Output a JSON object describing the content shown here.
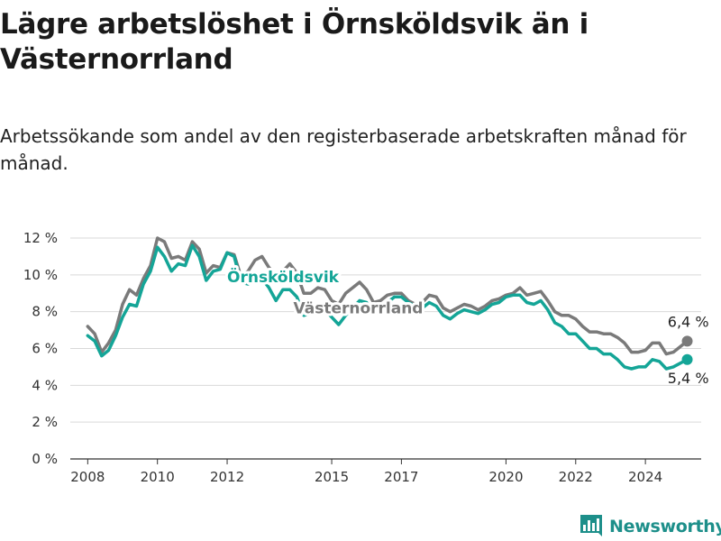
{
  "header": {
    "title": "Lägre arbetslöshet i Örnsköldsvik än i Västernorrland",
    "subtitle": "Arbetssökande som andel av den registerbaserade arbetskraften månad för månad."
  },
  "brand": {
    "name": "Newsworthy",
    "icon": "bar-chart-logo-icon",
    "color": "#1d8f8a"
  },
  "chart_data": {
    "type": "line",
    "title": "Lägre arbetslöshet i Örnsköldsvik än i Västernorrland",
    "subtitle": "Arbetssökande som andel av den registerbaserade arbetskraften månad för månad.",
    "xlabel": "",
    "ylabel": "",
    "xlim": [
      2007.5,
      2025.6
    ],
    "ylim": [
      0,
      12
    ],
    "x_ticks": [
      2008,
      2010,
      2012,
      2015,
      2017,
      2020,
      2022,
      2024
    ],
    "y_ticks": [
      {
        "value": 0,
        "label": "0 %"
      },
      {
        "value": 2,
        "label": "2 %"
      },
      {
        "value": 4,
        "label": "4 %"
      },
      {
        "value": 6,
        "label": "6 %"
      },
      {
        "value": 8,
        "label": "8 %"
      },
      {
        "value": 10,
        "label": "10 %"
      },
      {
        "value": 12,
        "label": "12 %"
      }
    ],
    "grid": true,
    "series": [
      {
        "name": "Västernorrland",
        "color": "#7a7a7a",
        "label_at": [
          2013.9,
          7.9
        ],
        "end_label": "6,4 %",
        "points": [
          [
            2008.0,
            7.2
          ],
          [
            2008.2,
            6.8
          ],
          [
            2008.4,
            5.8
          ],
          [
            2008.6,
            6.3
          ],
          [
            2008.8,
            7.0
          ],
          [
            2009.0,
            8.4
          ],
          [
            2009.2,
            9.2
          ],
          [
            2009.4,
            8.9
          ],
          [
            2009.6,
            9.8
          ],
          [
            2009.8,
            10.5
          ],
          [
            2010.0,
            12.0
          ],
          [
            2010.2,
            11.8
          ],
          [
            2010.4,
            10.9
          ],
          [
            2010.6,
            11.0
          ],
          [
            2010.8,
            10.8
          ],
          [
            2011.0,
            11.8
          ],
          [
            2011.2,
            11.4
          ],
          [
            2011.4,
            10.1
          ],
          [
            2011.6,
            10.5
          ],
          [
            2011.8,
            10.4
          ],
          [
            2012.0,
            11.2
          ],
          [
            2012.2,
            11.1
          ],
          [
            2012.4,
            9.9
          ],
          [
            2012.6,
            10.2
          ],
          [
            2012.8,
            10.8
          ],
          [
            2013.0,
            11.0
          ],
          [
            2013.2,
            10.4
          ],
          [
            2013.4,
            10.0
          ],
          [
            2013.6,
            10.2
          ],
          [
            2013.8,
            10.6
          ],
          [
            2014.0,
            10.1
          ],
          [
            2014.2,
            9.0
          ],
          [
            2014.4,
            9.0
          ],
          [
            2014.6,
            9.3
          ],
          [
            2014.8,
            9.2
          ],
          [
            2015.0,
            8.6
          ],
          [
            2015.2,
            8.4
          ],
          [
            2015.4,
            9.0
          ],
          [
            2015.6,
            9.3
          ],
          [
            2015.8,
            9.6
          ],
          [
            2016.0,
            9.2
          ],
          [
            2016.2,
            8.5
          ],
          [
            2016.4,
            8.6
          ],
          [
            2016.6,
            8.9
          ],
          [
            2016.8,
            9.0
          ],
          [
            2017.0,
            9.0
          ],
          [
            2017.2,
            8.6
          ],
          [
            2017.4,
            8.4
          ],
          [
            2017.6,
            8.5
          ],
          [
            2017.8,
            8.9
          ],
          [
            2018.0,
            8.8
          ],
          [
            2018.2,
            8.2
          ],
          [
            2018.4,
            8.0
          ],
          [
            2018.6,
            8.2
          ],
          [
            2018.8,
            8.4
          ],
          [
            2019.0,
            8.3
          ],
          [
            2019.2,
            8.1
          ],
          [
            2019.4,
            8.3
          ],
          [
            2019.6,
            8.6
          ],
          [
            2019.8,
            8.7
          ],
          [
            2020.0,
            8.9
          ],
          [
            2020.2,
            9.0
          ],
          [
            2020.4,
            9.3
          ],
          [
            2020.6,
            8.9
          ],
          [
            2020.8,
            9.0
          ],
          [
            2021.0,
            9.1
          ],
          [
            2021.2,
            8.6
          ],
          [
            2021.4,
            8.0
          ],
          [
            2021.6,
            7.8
          ],
          [
            2021.8,
            7.8
          ],
          [
            2022.0,
            7.6
          ],
          [
            2022.2,
            7.2
          ],
          [
            2022.4,
            6.9
          ],
          [
            2022.6,
            6.9
          ],
          [
            2022.8,
            6.8
          ],
          [
            2023.0,
            6.8
          ],
          [
            2023.2,
            6.6
          ],
          [
            2023.4,
            6.3
          ],
          [
            2023.6,
            5.8
          ],
          [
            2023.8,
            5.8
          ],
          [
            2024.0,
            5.9
          ],
          [
            2024.2,
            6.3
          ],
          [
            2024.4,
            6.3
          ],
          [
            2024.6,
            5.7
          ],
          [
            2024.8,
            5.8
          ],
          [
            2025.0,
            6.1
          ],
          [
            2025.2,
            6.4
          ]
        ]
      },
      {
        "name": "Örnsköldsvik",
        "color": "#14a597",
        "label_at": [
          2012.0,
          9.6
        ],
        "end_label": "5,4 %",
        "points": [
          [
            2008.0,
            6.7
          ],
          [
            2008.2,
            6.4
          ],
          [
            2008.4,
            5.6
          ],
          [
            2008.6,
            5.9
          ],
          [
            2008.8,
            6.7
          ],
          [
            2009.0,
            7.7
          ],
          [
            2009.2,
            8.4
          ],
          [
            2009.4,
            8.3
          ],
          [
            2009.6,
            9.5
          ],
          [
            2009.8,
            10.2
          ],
          [
            2010.0,
            11.5
          ],
          [
            2010.2,
            11.0
          ],
          [
            2010.4,
            10.2
          ],
          [
            2010.6,
            10.6
          ],
          [
            2010.8,
            10.5
          ],
          [
            2011.0,
            11.6
          ],
          [
            2011.2,
            11.0
          ],
          [
            2011.4,
            9.7
          ],
          [
            2011.6,
            10.2
          ],
          [
            2011.8,
            10.3
          ],
          [
            2012.0,
            11.2
          ],
          [
            2012.2,
            11.0
          ],
          [
            2012.4,
            9.6
          ],
          [
            2012.6,
            9.5
          ],
          [
            2012.8,
            9.7
          ],
          [
            2013.0,
            9.8
          ],
          [
            2013.2,
            9.3
          ],
          [
            2013.4,
            8.6
          ],
          [
            2013.6,
            9.2
          ],
          [
            2013.8,
            9.2
          ],
          [
            2014.0,
            8.8
          ],
          [
            2014.2,
            7.8
          ],
          [
            2014.4,
            7.9
          ],
          [
            2014.6,
            8.1
          ],
          [
            2014.8,
            8.1
          ],
          [
            2015.0,
            7.7
          ],
          [
            2015.2,
            7.3
          ],
          [
            2015.4,
            7.8
          ],
          [
            2015.6,
            8.2
          ],
          [
            2015.8,
            8.6
          ],
          [
            2016.0,
            8.5
          ],
          [
            2016.2,
            7.9
          ],
          [
            2016.4,
            8.0
          ],
          [
            2016.6,
            8.5
          ],
          [
            2016.8,
            8.8
          ],
          [
            2017.0,
            8.8
          ],
          [
            2017.2,
            8.5
          ],
          [
            2017.4,
            8.3
          ],
          [
            2017.6,
            8.2
          ],
          [
            2017.8,
            8.5
          ],
          [
            2018.0,
            8.3
          ],
          [
            2018.2,
            7.8
          ],
          [
            2018.4,
            7.6
          ],
          [
            2018.6,
            7.9
          ],
          [
            2018.8,
            8.1
          ],
          [
            2019.0,
            8.0
          ],
          [
            2019.2,
            7.9
          ],
          [
            2019.4,
            8.1
          ],
          [
            2019.6,
            8.4
          ],
          [
            2019.8,
            8.5
          ],
          [
            2020.0,
            8.8
          ],
          [
            2020.2,
            8.9
          ],
          [
            2020.4,
            8.9
          ],
          [
            2020.6,
            8.5
          ],
          [
            2020.8,
            8.4
          ],
          [
            2021.0,
            8.6
          ],
          [
            2021.2,
            8.1
          ],
          [
            2021.4,
            7.4
          ],
          [
            2021.6,
            7.2
          ],
          [
            2021.8,
            6.8
          ],
          [
            2022.0,
            6.8
          ],
          [
            2022.2,
            6.4
          ],
          [
            2022.4,
            6.0
          ],
          [
            2022.6,
            6.0
          ],
          [
            2022.8,
            5.7
          ],
          [
            2023.0,
            5.7
          ],
          [
            2023.2,
            5.4
          ],
          [
            2023.4,
            5.0
          ],
          [
            2023.6,
            4.9
          ],
          [
            2023.8,
            5.0
          ],
          [
            2024.0,
            5.0
          ],
          [
            2024.2,
            5.4
          ],
          [
            2024.4,
            5.3
          ],
          [
            2024.6,
            4.9
          ],
          [
            2024.8,
            5.0
          ],
          [
            2025.0,
            5.2
          ],
          [
            2025.2,
            5.4
          ]
        ]
      }
    ]
  }
}
